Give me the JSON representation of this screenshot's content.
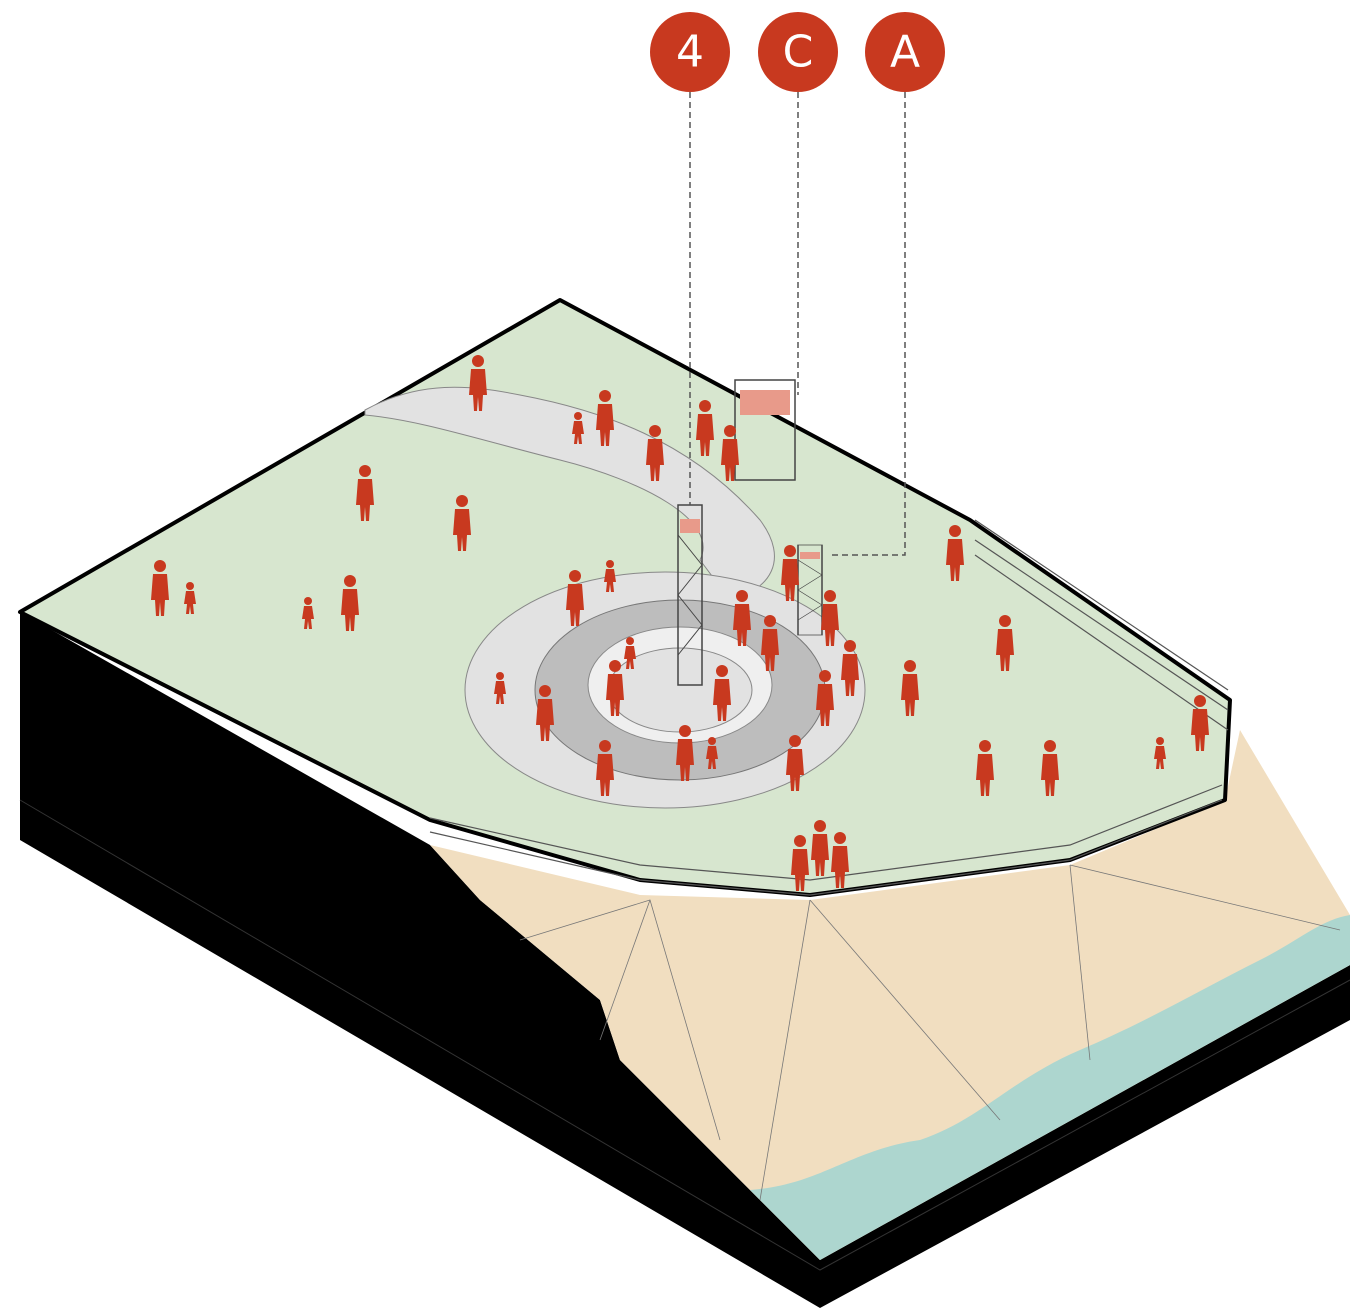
{
  "labels": [
    "4",
    "C",
    "A"
  ]
}
